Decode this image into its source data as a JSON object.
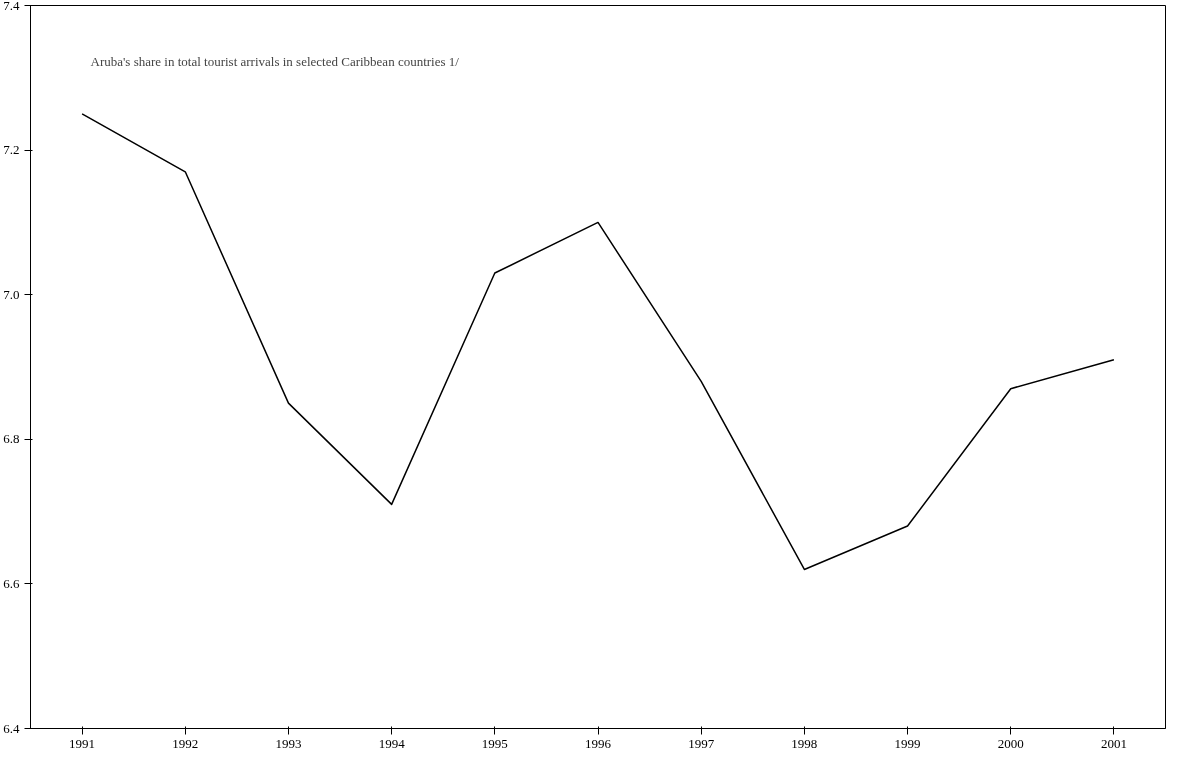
{
  "chart_data": {
    "type": "line",
    "title": "Aruba's share in total tourist arrivals in selected Caribbean countries 1/",
    "categories": [
      "1991",
      "1992",
      "1993",
      "1994",
      "1995",
      "1996",
      "1997",
      "1998",
      "1999",
      "2000",
      "2001"
    ],
    "series": [
      {
        "color": "#000000",
        "values": [
          7.25,
          7.17,
          6.85,
          6.71,
          7.03,
          7.1,
          6.88,
          6.62,
          6.68,
          6.87,
          6.91
        ]
      }
    ],
    "ylim": [
      6.4,
      7.4
    ],
    "yticks": [
      {
        "value": 6.4,
        "label": "6.4"
      },
      {
        "value": 6.6,
        "label": "6.6"
      },
      {
        "value": 6.8,
        "label": "6.8"
      },
      {
        "value": 7.0,
        "label": "7.0"
      },
      {
        "value": 7.2,
        "label": "7.2"
      },
      {
        "value": 7.4,
        "label": "7.4"
      }
    ],
    "grid": false,
    "marker": "none",
    "line_style": "solid"
  }
}
